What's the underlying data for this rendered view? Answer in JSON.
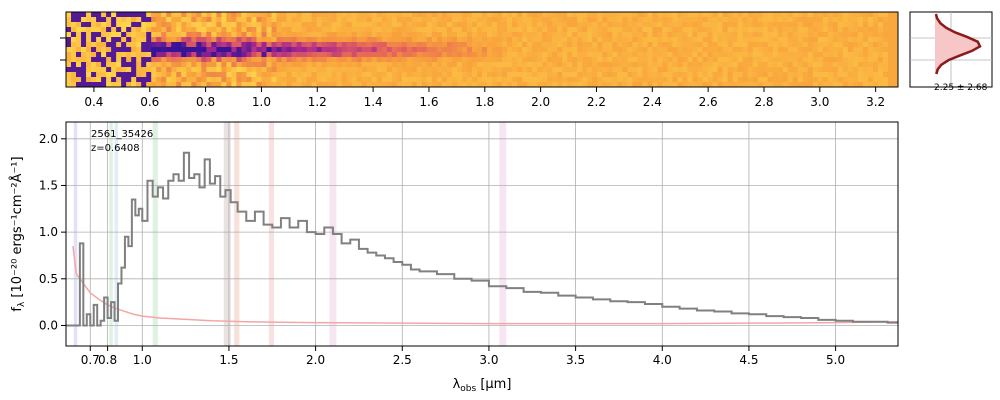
{
  "colors": {
    "spectrum": "#808080",
    "error": "#f4a6a6",
    "profile_line": "#8b1a1a",
    "profile_fill": "#f7c6c6",
    "heat_low": "#ffd84a",
    "heat_mid": "#f28a3a",
    "heat_high": "#3a1a9a"
  },
  "chart_data": [
    {
      "type": "heatmap",
      "x_ticks": [
        {
          "value": 0.4,
          "label": "0.4"
        },
        {
          "value": 0.6,
          "label": "0.6"
        },
        {
          "value": 0.8,
          "label": "0.8"
        },
        {
          "value": 1.0,
          "label": "1.0"
        },
        {
          "value": 1.2,
          "label": "1.2"
        },
        {
          "value": 1.4,
          "label": "1.4"
        },
        {
          "value": 1.6,
          "label": "1.6"
        },
        {
          "value": 1.8,
          "label": "1.8"
        },
        {
          "value": 2.0,
          "label": "2.0"
        },
        {
          "value": 2.2,
          "label": "2.2"
        },
        {
          "value": 2.4,
          "label": "2.4"
        },
        {
          "value": 2.6,
          "label": "2.6"
        },
        {
          "value": 2.8,
          "label": "2.8"
        },
        {
          "value": 3.0,
          "label": "3.0"
        },
        {
          "value": 3.2,
          "label": "3.2"
        }
      ],
      "colormap": "plasma",
      "trace_rows": "center"
    },
    {
      "type": "line",
      "annotation": "2.25 ± 2.68",
      "profile": [
        0.02,
        0.05,
        0.12,
        0.25,
        0.45,
        0.72,
        0.95,
        1.0,
        0.82,
        0.55,
        0.3,
        0.14,
        0.06,
        0.03
      ]
    },
    {
      "type": "line",
      "object_id": "2561_35426",
      "redshift_label": "z=0.6408",
      "xlabel": "λ",
      "xlabel_sub": "obs",
      "xlabel_unit": " [μm]",
      "ylabel": "f",
      "ylabel_sub": "λ",
      "ylabel_unit": " [10⁻²⁰ ergs⁻¹cm⁻²Å⁻¹]",
      "xlim": [
        0.56,
        5.36
      ],
      "ylim": [
        -0.22,
        2.18
      ],
      "grid": true,
      "x_ticks": [
        {
          "value": 0.7,
          "label": "0.7"
        },
        {
          "value": 0.8,
          "label": "0.8"
        },
        {
          "value": 1.0,
          "label": "1.0"
        },
        {
          "value": 1.5,
          "label": "1.5"
        },
        {
          "value": 2.0,
          "label": "2.0"
        },
        {
          "value": 2.5,
          "label": "2.5"
        },
        {
          "value": 3.0,
          "label": "3.0"
        },
        {
          "value": 3.5,
          "label": "3.5"
        },
        {
          "value": 4.0,
          "label": "4.0"
        },
        {
          "value": 4.5,
          "label": "4.5"
        },
        {
          "value": 5.0,
          "label": "5.0"
        }
      ],
      "y_ticks": [
        {
          "value": 0.0,
          "label": "0.0"
        },
        {
          "value": 0.5,
          "label": "0.5"
        },
        {
          "value": 1.0,
          "label": "1.0"
        },
        {
          "value": 1.5,
          "label": "1.5"
        },
        {
          "value": 2.0,
          "label": "2.0"
        }
      ],
      "emission_bands": [
        {
          "x0": 0.605,
          "x1": 0.625,
          "color": "#c8c8f0"
        },
        {
          "x0": 0.81,
          "x1": 0.83,
          "color": "#c8e6c8"
        },
        {
          "x0": 0.84,
          "x1": 0.86,
          "color": "#c8e0f0"
        },
        {
          "x0": 1.06,
          "x1": 1.09,
          "color": "#c8e6c8"
        },
        {
          "x0": 1.47,
          "x1": 1.51,
          "color": "#d8c8c8"
        },
        {
          "x0": 1.53,
          "x1": 1.56,
          "color": "#f0c8b8"
        },
        {
          "x0": 1.73,
          "x1": 1.76,
          "color": "#f0c8c8"
        },
        {
          "x0": 2.08,
          "x1": 2.12,
          "color": "#f0d0e8"
        },
        {
          "x0": 3.06,
          "x1": 3.1,
          "color": "#f0d0e8"
        }
      ],
      "spectrum": [
        [
          0.56,
          0.0
        ],
        [
          0.62,
          0.0
        ],
        [
          0.64,
          0.88
        ],
        [
          0.66,
          0.0
        ],
        [
          0.68,
          0.12
        ],
        [
          0.7,
          0.0
        ],
        [
          0.72,
          0.22
        ],
        [
          0.74,
          0.0
        ],
        [
          0.76,
          0.05
        ],
        [
          0.78,
          0.3
        ],
        [
          0.8,
          0.08
        ],
        [
          0.82,
          0.25
        ],
        [
          0.84,
          0.05
        ],
        [
          0.86,
          0.45
        ],
        [
          0.88,
          0.62
        ],
        [
          0.9,
          0.95
        ],
        [
          0.92,
          0.85
        ],
        [
          0.94,
          1.35
        ],
        [
          0.96,
          1.18
        ],
        [
          0.98,
          1.25
        ],
        [
          1.0,
          1.12
        ],
        [
          1.03,
          1.55
        ],
        [
          1.06,
          1.38
        ],
        [
          1.09,
          1.48
        ],
        [
          1.12,
          1.36
        ],
        [
          1.15,
          1.55
        ],
        [
          1.18,
          1.62
        ],
        [
          1.21,
          1.55
        ],
        [
          1.24,
          1.85
        ],
        [
          1.27,
          1.58
        ],
        [
          1.3,
          1.62
        ],
        [
          1.33,
          1.48
        ],
        [
          1.36,
          1.78
        ],
        [
          1.39,
          1.52
        ],
        [
          1.42,
          1.6
        ],
        [
          1.45,
          1.38
        ],
        [
          1.48,
          1.45
        ],
        [
          1.51,
          1.32
        ],
        [
          1.55,
          1.22
        ],
        [
          1.6,
          1.12
        ],
        [
          1.65,
          1.22
        ],
        [
          1.7,
          1.08
        ],
        [
          1.75,
          1.05
        ],
        [
          1.8,
          1.15
        ],
        [
          1.85,
          1.05
        ],
        [
          1.9,
          1.12
        ],
        [
          1.95,
          1.0
        ],
        [
          2.0,
          0.98
        ],
        [
          2.05,
          1.05
        ],
        [
          2.1,
          0.98
        ],
        [
          2.15,
          0.88
        ],
        [
          2.2,
          0.92
        ],
        [
          2.25,
          0.82
        ],
        [
          2.3,
          0.78
        ],
        [
          2.35,
          0.75
        ],
        [
          2.4,
          0.72
        ],
        [
          2.45,
          0.68
        ],
        [
          2.5,
          0.65
        ],
        [
          2.55,
          0.6
        ],
        [
          2.6,
          0.58
        ],
        [
          2.7,
          0.55
        ],
        [
          2.8,
          0.5
        ],
        [
          2.9,
          0.48
        ],
        [
          3.0,
          0.42
        ],
        [
          3.1,
          0.4
        ],
        [
          3.2,
          0.36
        ],
        [
          3.3,
          0.35
        ],
        [
          3.4,
          0.32
        ],
        [
          3.5,
          0.3
        ],
        [
          3.6,
          0.28
        ],
        [
          3.7,
          0.26
        ],
        [
          3.8,
          0.25
        ],
        [
          3.9,
          0.23
        ],
        [
          4.0,
          0.2
        ],
        [
          4.1,
          0.18
        ],
        [
          4.2,
          0.16
        ],
        [
          4.3,
          0.15
        ],
        [
          4.4,
          0.13
        ],
        [
          4.5,
          0.12
        ],
        [
          4.6,
          0.1
        ],
        [
          4.7,
          0.09
        ],
        [
          4.8,
          0.08
        ],
        [
          4.9,
          0.06
        ],
        [
          5.0,
          0.05
        ],
        [
          5.1,
          0.04
        ],
        [
          5.2,
          0.04
        ],
        [
          5.3,
          0.03
        ],
        [
          5.36,
          0.03
        ]
      ],
      "error": [
        [
          0.6,
          0.85
        ],
        [
          0.62,
          0.55
        ],
        [
          0.66,
          0.45
        ],
        [
          0.7,
          0.35
        ],
        [
          0.75,
          0.28
        ],
        [
          0.8,
          0.22
        ],
        [
          0.85,
          0.18
        ],
        [
          0.9,
          0.15
        ],
        [
          0.95,
          0.12
        ],
        [
          1.0,
          0.1
        ],
        [
          1.1,
          0.08
        ],
        [
          1.2,
          0.07
        ],
        [
          1.4,
          0.05
        ],
        [
          1.6,
          0.04
        ],
        [
          1.8,
          0.035
        ],
        [
          2.0,
          0.03
        ],
        [
          2.5,
          0.025
        ],
        [
          3.0,
          0.02
        ],
        [
          3.5,
          0.02
        ],
        [
          4.0,
          0.02
        ],
        [
          4.5,
          0.025
        ],
        [
          5.0,
          0.03
        ],
        [
          5.36,
          0.04
        ]
      ]
    }
  ]
}
